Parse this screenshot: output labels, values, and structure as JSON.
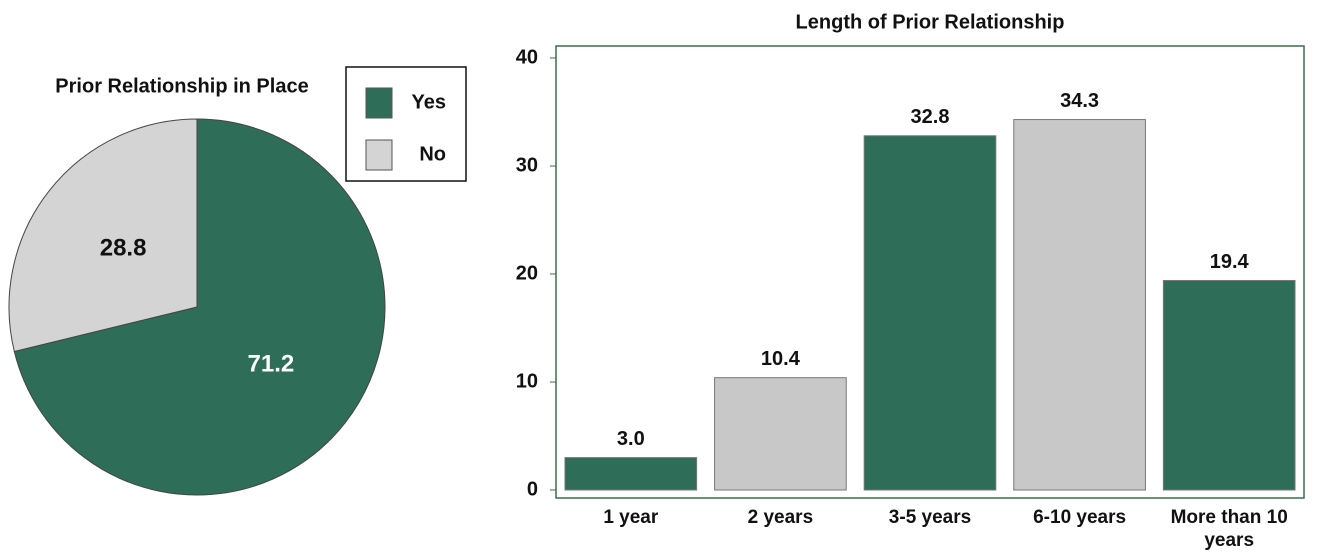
{
  "chart_data": [
    {
      "type": "pie",
      "title": "Prior Relationship in Place",
      "categories": [
        "Yes",
        "No"
      ],
      "values": [
        71.2,
        28.8
      ],
      "colors": [
        "#2e6e58",
        "#d4d4d4"
      ],
      "label_colors": [
        "#ffffff",
        "#111111"
      ],
      "legend": "upper right"
    },
    {
      "type": "bar",
      "title": "Length of Prior Relationship",
      "categories": [
        "1 year",
        "2 years",
        "3-5 years",
        "6-10 years",
        "More than 10 years"
      ],
      "values": [
        3.0,
        10.4,
        32.8,
        34.3,
        19.4
      ],
      "value_labels": [
        "3.0",
        "10.4",
        "32.8",
        "34.3",
        "19.4"
      ],
      "colors": [
        "#2e6e58",
        "#c8c8c8",
        "#2e6e58",
        "#c8c8c8",
        "#2e6e58"
      ],
      "ylim": [
        0,
        40
      ],
      "yticks": [
        0,
        10,
        20,
        30,
        40
      ],
      "grid": false
    }
  ]
}
